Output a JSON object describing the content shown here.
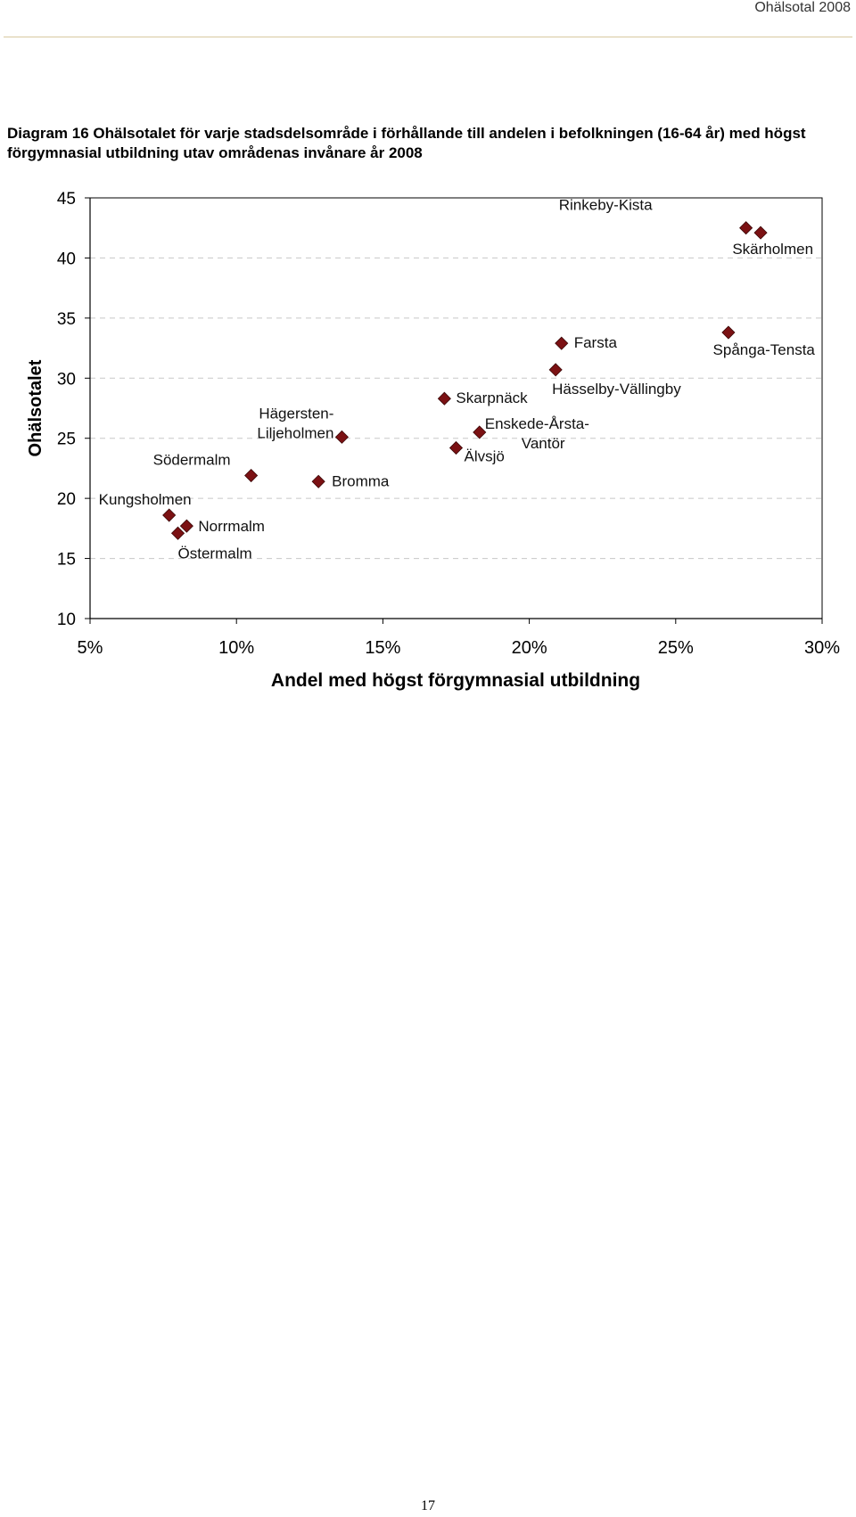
{
  "header": {
    "title": "Ohälsotal 2008"
  },
  "caption": "Diagram 16 Ohälsotalet för varje stadsdelsområde i förhållande till andelen i befolkningen (16-64 år) med högst förgymnasial utbildning utav områdenas invånare år 2008",
  "page_number": "17",
  "chart_data": {
    "type": "scatter",
    "xlabel": "Andel med högst förgymnasial utbildning",
    "ylabel": "Ohälsotalet",
    "xlim": [
      5,
      30
    ],
    "ylim": [
      10,
      45
    ],
    "x_ticks": [
      5,
      10,
      15,
      20,
      25,
      30
    ],
    "x_tick_labels": [
      "5%",
      "10%",
      "15%",
      "20%",
      "25%",
      "30%"
    ],
    "y_ticks": [
      10,
      15,
      20,
      25,
      30,
      35,
      40,
      45
    ],
    "y_tick_labels": [
      "10",
      "15",
      "20",
      "25",
      "30",
      "35",
      "40",
      "45"
    ],
    "grid": "horizontal dashed",
    "marker_color": "#7b1113",
    "points": [
      {
        "name": "Rinkeby-Kista",
        "label_lines": [
          "Rinkeby-Kista"
        ],
        "x": 27.4,
        "y": 42.5
      },
      {
        "name": "Skärholmen",
        "label_lines": [
          "Skärholmen"
        ],
        "x": 27.9,
        "y": 42.1
      },
      {
        "name": "Spånga-Tensta",
        "label_lines": [
          "Spånga-Tensta"
        ],
        "x": 26.8,
        "y": 33.8
      },
      {
        "name": "Farsta",
        "label_lines": [
          "Farsta"
        ],
        "x": 21.1,
        "y": 32.9
      },
      {
        "name": "Hässelby-Vällingby",
        "label_lines": [
          "Hässelby-Vällingby"
        ],
        "x": 20.9,
        "y": 30.7
      },
      {
        "name": "Skarpnäck",
        "label_lines": [
          "Skarpnäck"
        ],
        "x": 17.1,
        "y": 28.3
      },
      {
        "name": "Enskede-Årsta-Vantör",
        "label_lines": [
          "Enskede-Årsta-",
          "Vantör"
        ],
        "x": 18.3,
        "y": 25.5
      },
      {
        "name": "Älvsjö",
        "label_lines": [
          "Älvsjö"
        ],
        "x": 17.5,
        "y": 24.2
      },
      {
        "name": "Hägersten-Liljeholmen",
        "label_lines": [
          "Hägersten-",
          "Liljeholmen"
        ],
        "x": 13.6,
        "y": 25.1
      },
      {
        "name": "Bromma",
        "label_lines": [
          "Bromma"
        ],
        "x": 12.8,
        "y": 21.4
      },
      {
        "name": "Södermalm",
        "label_lines": [
          "Södermalm"
        ],
        "x": 10.5,
        "y": 21.9
      },
      {
        "name": "Kungsholmen",
        "label_lines": [
          "Kungsholmen"
        ],
        "x": 7.7,
        "y": 18.6
      },
      {
        "name": "Norrmalm",
        "label_lines": [
          "Norrmalm"
        ],
        "x": 8.3,
        "y": 17.7
      },
      {
        "name": "Östermalm",
        "label_lines": [
          "Östermalm"
        ],
        "x": 8.0,
        "y": 17.1
      }
    ]
  }
}
